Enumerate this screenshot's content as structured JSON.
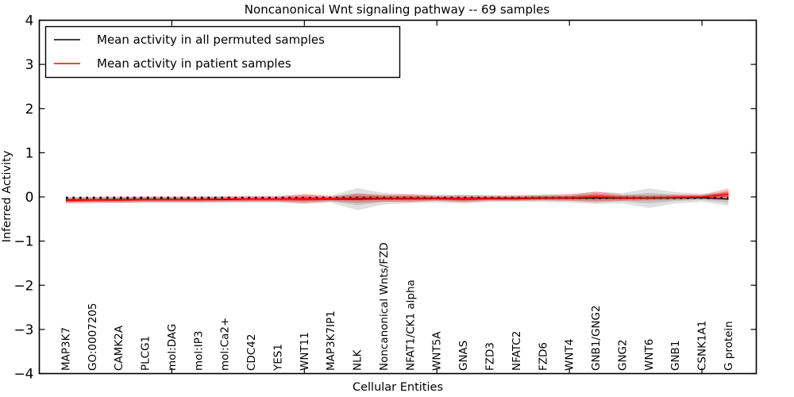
{
  "chart_data": {
    "type": "line",
    "title": "Noncanonical Wnt signaling pathway -- 69 samples",
    "xlabel": "Cellular Entities",
    "ylabel": "Inferred Activity",
    "xlim": [
      0,
      27.05
    ],
    "ylim": [
      -4,
      4
    ],
    "yticks": [
      4,
      3,
      2,
      1,
      0,
      -1,
      -2,
      -3,
      -4
    ],
    "ytick_labels": [
      "4",
      "3",
      "2",
      "1",
      "0",
      "−1",
      "−2",
      "−3",
      "−4"
    ],
    "xticks": [
      0,
      5,
      10,
      15,
      20,
      25
    ],
    "grid": false,
    "categories": [
      "MAP3K7",
      "GO:0007205",
      "CAMK2A",
      "PLCG1",
      "mol:DAG",
      "mol:IP3",
      "mol:Ca2+",
      "CDC42",
      "YES1",
      "WNT11",
      "MAP3K7IP1",
      "NLK",
      "Noncanonical Wnts/FZD",
      "NFAT1/CK1 alpha",
      "WNT5A",
      "GNAS",
      "FZD3",
      "NFATC2",
      "FZD6",
      "WNT4",
      "GNB1/GNG2",
      "GNG2",
      "WNT6",
      "GNB1",
      "CSNK1A1",
      "G protein"
    ],
    "legend": {
      "position": "upper left",
      "entries": [
        {
          "label": "Mean activity in all permuted samples",
          "color": "#000000"
        },
        {
          "label": "Mean activity in patient samples",
          "color": "#ff0000"
        }
      ]
    },
    "series": [
      {
        "name": "Mean activity in all permuted samples",
        "color": "#000000",
        "style": "solid",
        "values": [
          -0.07,
          -0.07,
          -0.06,
          -0.06,
          -0.06,
          -0.06,
          -0.06,
          -0.05,
          -0.05,
          -0.05,
          -0.05,
          -0.05,
          -0.04,
          -0.04,
          -0.04,
          -0.05,
          -0.04,
          -0.04,
          -0.03,
          -0.03,
          -0.02,
          -0.03,
          -0.03,
          -0.02,
          -0.02,
          -0.05
        ],
        "std": [
          0.08,
          0.08,
          0.08,
          0.08,
          0.08,
          0.08,
          0.08,
          0.08,
          0.08,
          0.11,
          0.08,
          0.25,
          0.13,
          0.1,
          0.09,
          0.1,
          0.08,
          0.08,
          0.09,
          0.1,
          0.14,
          0.12,
          0.22,
          0.13,
          0.09,
          0.15
        ],
        "band_color": "#000000"
      },
      {
        "name": "Mean activity in patient samples",
        "color": "#ff0000",
        "style": "solid",
        "values": [
          -0.08,
          -0.07,
          -0.07,
          -0.06,
          -0.06,
          -0.06,
          -0.05,
          -0.05,
          -0.05,
          -0.04,
          -0.04,
          -0.03,
          -0.03,
          -0.03,
          -0.03,
          -0.04,
          -0.03,
          -0.03,
          -0.02,
          -0.02,
          0.0,
          -0.02,
          -0.02,
          -0.01,
          0.0,
          0.06
        ],
        "std": [
          0.06,
          0.06,
          0.06,
          0.06,
          0.06,
          0.06,
          0.06,
          0.06,
          0.06,
          0.1,
          0.06,
          0.1,
          0.08,
          0.09,
          0.06,
          0.08,
          0.06,
          0.06,
          0.06,
          0.07,
          0.12,
          0.07,
          0.06,
          0.06,
          0.05,
          0.13
        ],
        "band_color": "#ff0000"
      }
    ],
    "marker_line": {
      "value": -0.02,
      "color": "#000000",
      "style": "dotted"
    }
  }
}
